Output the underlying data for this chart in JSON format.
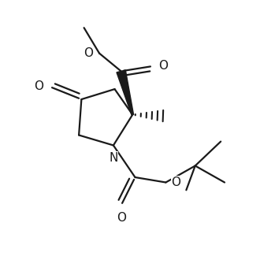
{
  "background": "#ffffff",
  "line_color": "#1a1a1a",
  "lw": 1.6,
  "figsize": [
    3.3,
    3.3
  ],
  "dpi": 100,
  "xlim": [
    0.0,
    1.0
  ],
  "ylim": [
    0.0,
    1.0
  ]
}
